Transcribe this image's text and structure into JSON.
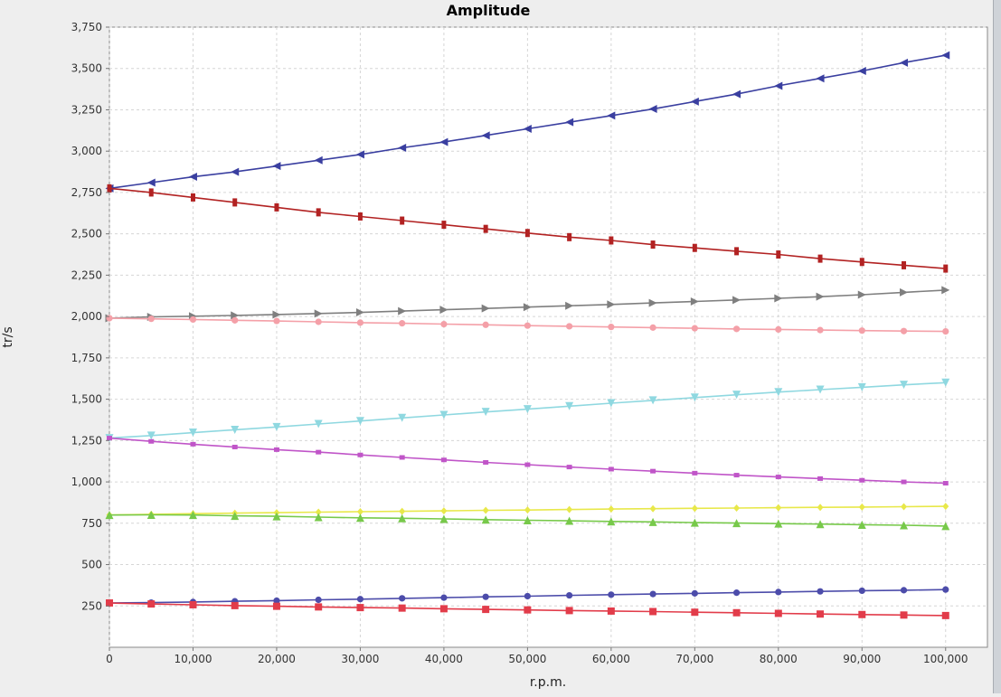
{
  "chart_data": {
    "type": "line",
    "title": "Amplitude",
    "xlabel": "r.p.m.",
    "ylabel": "tr/s",
    "xlim": [
      0,
      105000
    ],
    "ylim": [
      0,
      3750
    ],
    "x_ticks": [
      0,
      10000,
      20000,
      30000,
      40000,
      50000,
      60000,
      70000,
      80000,
      90000,
      100000
    ],
    "x_tick_labels": [
      "0",
      "10,000",
      "20,000",
      "30,000",
      "40,000",
      "50,000",
      "60,000",
      "70,000",
      "80,000",
      "90,000",
      "100,000"
    ],
    "y_ticks": [
      250,
      500,
      750,
      1000,
      1250,
      1500,
      1750,
      2000,
      2250,
      2500,
      2750,
      3000,
      3250,
      3500,
      3750
    ],
    "y_tick_labels": [
      "250",
      "500",
      "750",
      "1,000",
      "1,250",
      "1,500",
      "1,750",
      "2,000",
      "2,250",
      "2,500",
      "2,750",
      "3,000",
      "3,250",
      "3,500",
      "3,750"
    ],
    "grid": true,
    "legend": "none",
    "x": [
      0,
      5000,
      10000,
      15000,
      20000,
      25000,
      30000,
      35000,
      40000,
      45000,
      50000,
      55000,
      60000,
      65000,
      70000,
      75000,
      80000,
      85000,
      90000,
      95000,
      100000
    ],
    "series": [
      {
        "color": "#3a3fa0",
        "marker": "triangle-left",
        "values": [
          2775,
          2810,
          2845,
          2875,
          2910,
          2945,
          2980,
          3020,
          3055,
          3095,
          3135,
          3175,
          3215,
          3255,
          3300,
          3345,
          3395,
          3440,
          3485,
          3535,
          3580
        ]
      },
      {
        "color": "#b22222",
        "marker": "bar",
        "values": [
          2775,
          2750,
          2720,
          2690,
          2660,
          2630,
          2605,
          2580,
          2555,
          2530,
          2505,
          2480,
          2460,
          2435,
          2415,
          2395,
          2375,
          2350,
          2330,
          2310,
          2290
        ]
      },
      {
        "color": "#7f7f7f",
        "marker": "triangle-right",
        "values": [
          1990,
          1998,
          2002,
          2007,
          2012,
          2018,
          2025,
          2033,
          2041,
          2049,
          2057,
          2065,
          2073,
          2082,
          2091,
          2100,
          2110,
          2120,
          2132,
          2146,
          2160
        ]
      },
      {
        "color": "#f4a0a8",
        "marker": "circle",
        "values": [
          1990,
          1986,
          1982,
          1977,
          1973,
          1968,
          1963,
          1959,
          1954,
          1950,
          1945,
          1941,
          1937,
          1933,
          1929,
          1925,
          1922,
          1918,
          1915,
          1912,
          1910
        ]
      },
      {
        "color": "#8fd8e0",
        "marker": "triangle-down",
        "values": [
          1265,
          1280,
          1298,
          1315,
          1332,
          1350,
          1368,
          1387,
          1405,
          1423,
          1440,
          1458,
          1476,
          1493,
          1510,
          1527,
          1543,
          1558,
          1572,
          1587,
          1600
        ]
      },
      {
        "color": "#c055c8",
        "marker": "square-small",
        "values": [
          1265,
          1245,
          1228,
          1211,
          1195,
          1180,
          1163,
          1148,
          1133,
          1118,
          1104,
          1090,
          1077,
          1065,
          1053,
          1041,
          1030,
          1020,
          1010,
          1000,
          992
        ]
      },
      {
        "color": "#e8e84a",
        "marker": "diamond",
        "values": [
          800,
          804,
          808,
          811,
          814,
          817,
          820,
          822,
          825,
          828,
          830,
          833,
          836,
          838,
          840,
          842,
          844,
          846,
          848,
          850,
          852
        ]
      },
      {
        "color": "#77c94a",
        "marker": "triangle-up",
        "values": [
          800,
          801,
          800,
          795,
          792,
          787,
          783,
          780,
          776,
          772,
          768,
          765,
          761,
          758,
          754,
          751,
          748,
          745,
          741,
          738,
          733
        ]
      },
      {
        "color": "#4c4caa",
        "marker": "circle",
        "values": [
          268,
          270,
          274,
          278,
          282,
          287,
          291,
          296,
          300,
          305,
          309,
          314,
          318,
          322,
          326,
          330,
          334,
          338,
          342,
          345,
          349
        ]
      },
      {
        "color": "#e23c4a",
        "marker": "square",
        "values": [
          268,
          262,
          257,
          252,
          248,
          244,
          240,
          237,
          233,
          229,
          226,
          222,
          219,
          216,
          212,
          209,
          205,
          201,
          198,
          195,
          192
        ]
      }
    ]
  }
}
